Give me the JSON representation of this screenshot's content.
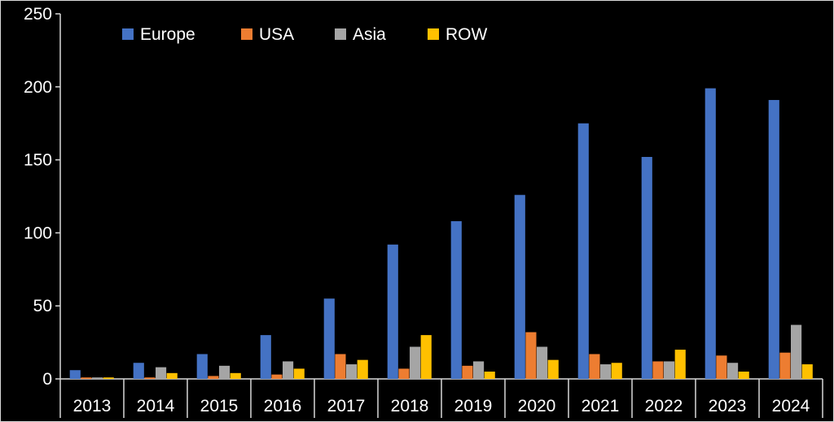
{
  "chart_data": {
    "type": "bar",
    "title": "",
    "xlabel": "",
    "ylabel": "",
    "ylim": [
      0,
      250
    ],
    "yticks": [
      0,
      50,
      100,
      150,
      200,
      250
    ],
    "grid": false,
    "legend_position": "top-left",
    "categories": [
      "2013",
      "2014",
      "2015",
      "2016",
      "2017",
      "2018",
      "2019",
      "2020",
      "2021",
      "2022",
      "2023",
      "2024"
    ],
    "series": [
      {
        "name": "Europe",
        "color": "#4472C4",
        "values": [
          6,
          11,
          17,
          30,
          55,
          92,
          108,
          126,
          175,
          152,
          199,
          191
        ]
      },
      {
        "name": "USA",
        "color": "#ED7D31",
        "values": [
          1,
          1,
          2,
          3,
          17,
          7,
          9,
          32,
          17,
          12,
          16,
          18
        ]
      },
      {
        "name": "Asia",
        "color": "#A5A5A5",
        "values": [
          1,
          8,
          9,
          12,
          10,
          22,
          12,
          22,
          10,
          12,
          11,
          37
        ]
      },
      {
        "name": "ROW",
        "color": "#FFC000",
        "values": [
          1,
          4,
          4,
          7,
          13,
          30,
          5,
          13,
          11,
          20,
          5,
          10
        ]
      }
    ]
  }
}
